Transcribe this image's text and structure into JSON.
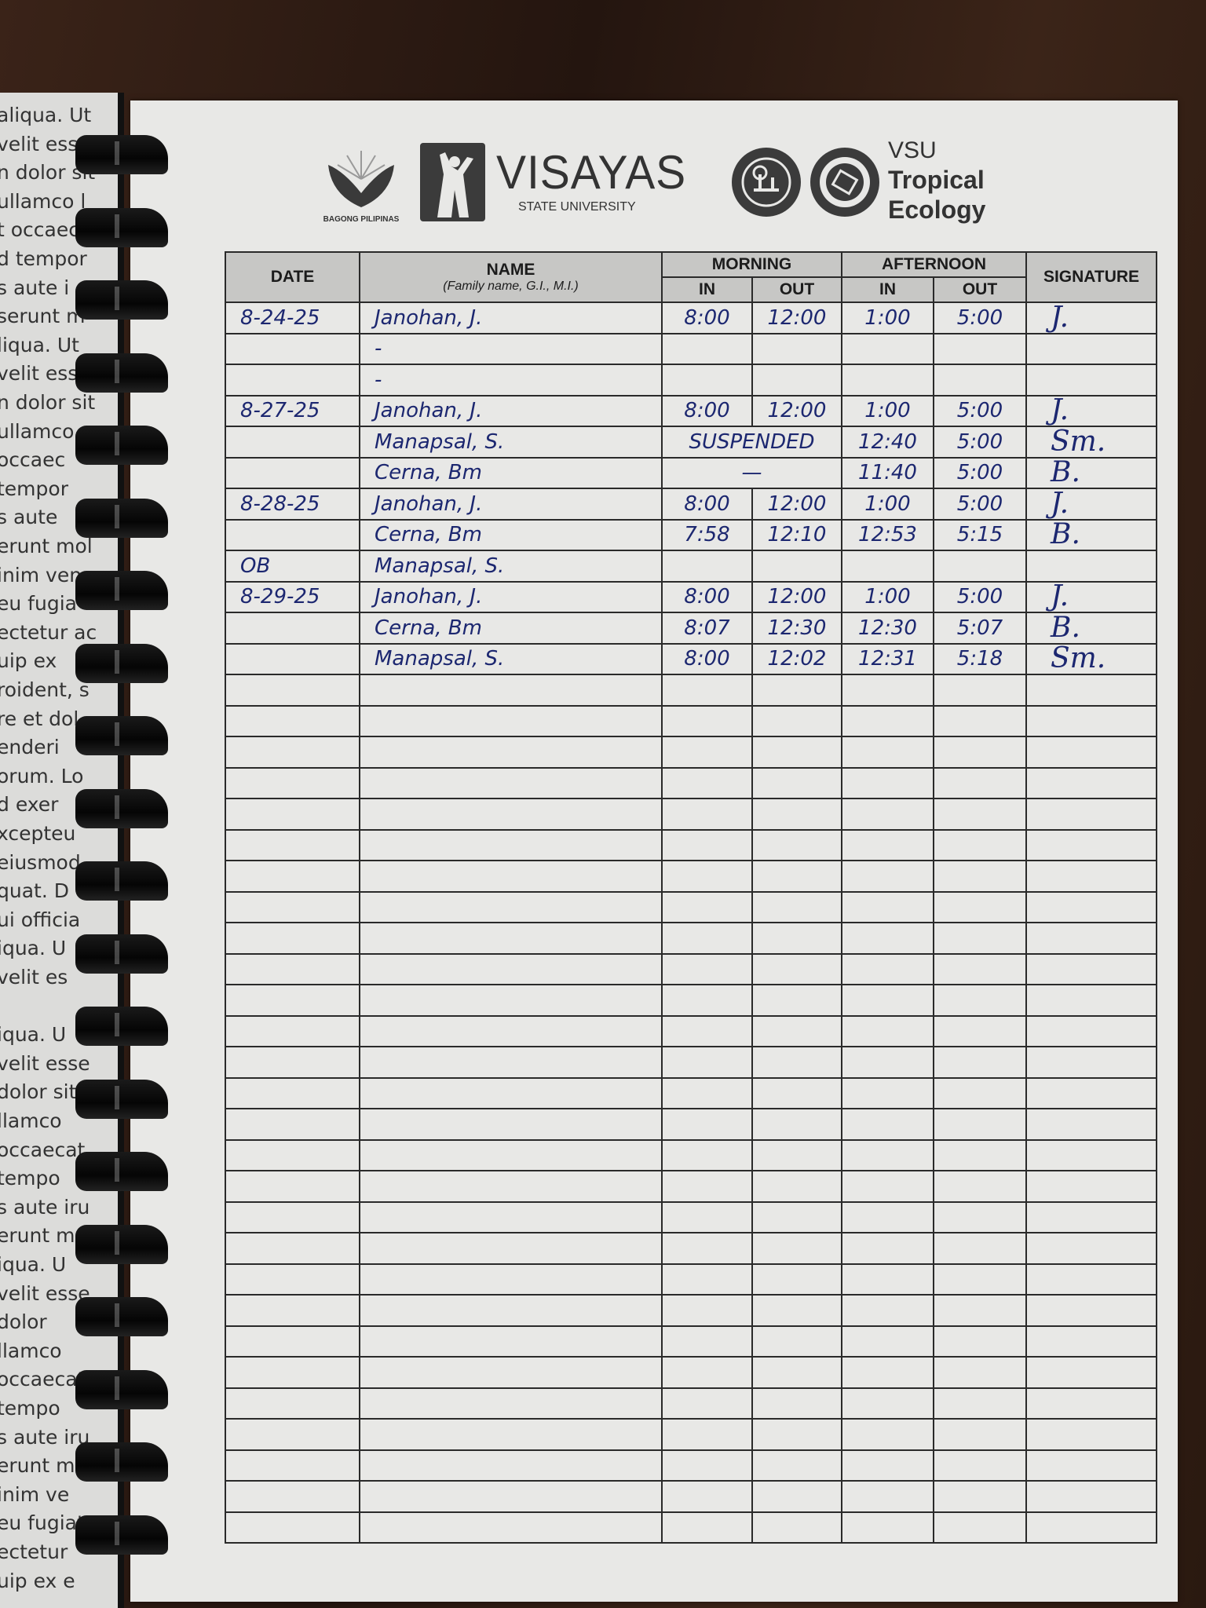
{
  "header": {
    "bagong_pilipinas": "BAGONG PILIPINAS",
    "university_name": "VISAYAS",
    "university_sub": "STATE UNIVERSITY",
    "unit_line1": "VSU",
    "unit_line2": "Tropical",
    "unit_line3": "Ecology"
  },
  "table": {
    "headers": {
      "date": "DATE",
      "name": "NAME",
      "name_sub": "(Family name, G.I., M.I.)",
      "morning": "MORNING",
      "afternoon": "AFTERNOON",
      "in": "IN",
      "out": "OUT",
      "signature": "SIGNATURE"
    },
    "rows": [
      {
        "date": "8-24-25",
        "name": "Janohan, J.",
        "am_in": "8:00",
        "am_out": "12:00",
        "pm_in": "1:00",
        "pm_out": "5:00",
        "signature": "J."
      },
      {
        "date": "",
        "name": "-",
        "am_in": "",
        "am_out": "",
        "pm_in": "",
        "pm_out": "",
        "signature": ""
      },
      {
        "date": "",
        "name": "-",
        "am_in": "",
        "am_out": "",
        "pm_in": "",
        "pm_out": "",
        "signature": ""
      },
      {
        "date": "8-27-25",
        "name": "Janohan, J.",
        "am_in": "8:00",
        "am_out": "12:00",
        "pm_in": "1:00",
        "pm_out": "5:00",
        "signature": "J."
      },
      {
        "date": "",
        "name": "Manapsal, S.",
        "am_span": "SUSPENDED",
        "pm_in": "12:40",
        "pm_out": "5:00",
        "signature": "Sm."
      },
      {
        "date": "",
        "name": "Cerna, Bm",
        "am_span": "—",
        "pm_in": "11:40",
        "pm_out": "5:00",
        "signature": "B."
      },
      {
        "date": "8-28-25",
        "name": "Janohan, J.",
        "am_in": "8:00",
        "am_out": "12:00",
        "pm_in": "1:00",
        "pm_out": "5:00",
        "signature": "J."
      },
      {
        "date": "",
        "name": "Cerna, Bm",
        "am_in": "7:58",
        "am_out": "12:10",
        "pm_in": "12:53",
        "pm_out": "5:15",
        "signature": "B."
      },
      {
        "date": "OB",
        "name": "Manapsal, S.",
        "am_in": "",
        "am_out": "",
        "pm_in": "",
        "pm_out": "",
        "signature": ""
      },
      {
        "date": "8-29-25",
        "name": "Janohan, J.",
        "am_in": "8:00",
        "am_out": "12:00",
        "pm_in": "1:00",
        "pm_out": "5:00",
        "signature": "J."
      },
      {
        "date": "",
        "name": "Cerna, Bm",
        "am_in": "8:07",
        "am_out": "12:30",
        "pm_in": "12:30",
        "pm_out": "5:07",
        "signature": "B."
      },
      {
        "date": "",
        "name": "Manapsal, S.",
        "am_in": "8:00",
        "am_out": "12:02",
        "pm_in": "12:31",
        "pm_out": "5:18",
        "signature": "Sm."
      }
    ],
    "total_rows": 40
  },
  "left_page_lines": [
    "aliqua. Ut",
    "velit ess",
    "n dolor sit",
    "ullamco l",
    "t occaec",
    "d tempor",
    "s aute i",
    "serunt m",
    "liqua. Ut",
    "velit ess",
    "n dolor sit",
    "ullamco",
    "occaec",
    "tempor",
    "s aute",
    "erunt mol",
    "inim ven",
    "eu fugia",
    "ectetur ac",
    "uip ex",
    "roident, s",
    "re et dol",
    "enderi",
    "orum. Lo",
    "d exer",
    "xcepteu",
    "eiusmod",
    "quat. D",
    "ui officia",
    "iqua. U",
    "velit es",
    "",
    "iqua. U",
    "velit esse",
    "dolor sit",
    "llamco",
    "occaecat",
    "tempo",
    "s aute iru",
    "erunt mo",
    "iqua. U",
    "velit esse",
    "dolor",
    "llamco",
    "occaecat",
    "tempo",
    "s aute iru",
    "erunt m",
    "inim ve",
    "eu fugiat",
    "ectetur",
    "uip ex e"
  ],
  "colors": {
    "ink": "#1c2770",
    "paper": "#e8e8e6",
    "header_fill": "#c7c7c5",
    "wood": "#2b1a12"
  }
}
